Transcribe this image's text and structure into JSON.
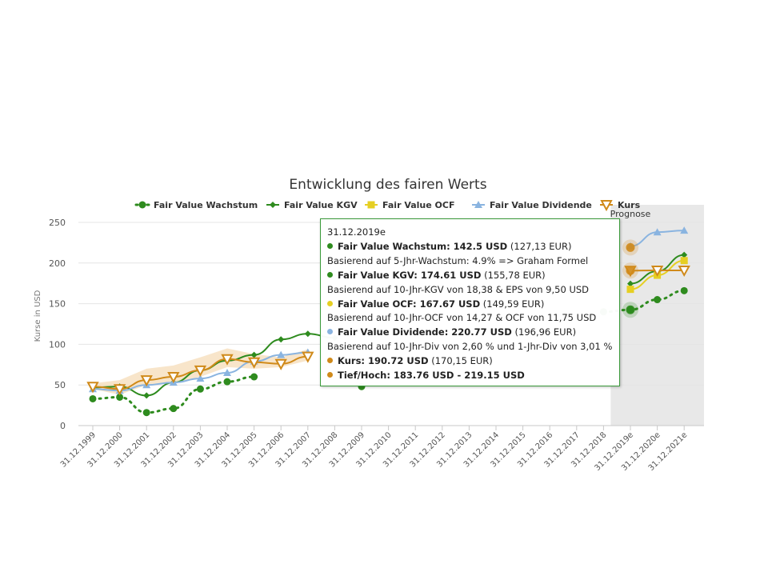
{
  "chart_data": {
    "type": "line",
    "title": "Entwicklung des fairen Werts",
    "ylabel": "Kurse in USD",
    "ylim": [
      0,
      250
    ],
    "yticks": [
      0,
      50,
      100,
      150,
      200,
      250
    ],
    "categories": [
      "31.12.1999",
      "31.12.2000",
      "31.12.2001",
      "31.12.2002",
      "31.12.2003",
      "31.12.2004",
      "31.12.2005",
      "31.12.2006",
      "31.12.2007",
      "31.12.2008",
      "31.12.2009",
      "31.12.2010",
      "31.12.2011",
      "31.12.2012",
      "31.12.2013",
      "31.12.2014",
      "31.12.2015",
      "31.12.2016",
      "31.12.2017",
      "31.12.2018",
      "31.12.2019e",
      "31.12.2020e",
      "31.12.2021e"
    ],
    "forecast_label": "Prognose",
    "forecast_start_index": 19,
    "legend_position": "top",
    "grid": true,
    "series": [
      {
        "name": "Fair Value Wachstum",
        "color": "#2e8b1e",
        "style": "dotted",
        "marker": "circle",
        "values": [
          33,
          35,
          16,
          21,
          45,
          54,
          60,
          null,
          null,
          null,
          48,
          null,
          null,
          null,
          null,
          null,
          null,
          null,
          null,
          140,
          142.5,
          155,
          166
        ]
      },
      {
        "name": "Fair Value KGV",
        "color": "#2e8b1e",
        "style": "solid",
        "marker": "diamond",
        "values": [
          47,
          48,
          37,
          53,
          68,
          80,
          87,
          106,
          113,
          108,
          null,
          null,
          null,
          null,
          null,
          null,
          null,
          null,
          null,
          null,
          174.61,
          190,
          210
        ]
      },
      {
        "name": "Fair Value OCF",
        "color": "#e6cf22",
        "style": "solid",
        "marker": "square",
        "values": [
          null,
          null,
          null,
          null,
          null,
          null,
          null,
          null,
          null,
          null,
          null,
          null,
          null,
          null,
          null,
          null,
          null,
          null,
          null,
          null,
          167.67,
          185,
          203
        ]
      },
      {
        "name": "Fair Value Dividende",
        "color": "#8ab4e0",
        "style": "solid",
        "marker": "triangle",
        "values": [
          45,
          43,
          50,
          53,
          58,
          65,
          79,
          87,
          90,
          null,
          null,
          null,
          null,
          null,
          null,
          null,
          null,
          null,
          null,
          null,
          220.77,
          238,
          240
        ]
      },
      {
        "name": "Kurs",
        "color": "#d08a1a",
        "style": "solid",
        "marker": "triangle-down",
        "values": [
          48,
          45,
          56,
          60,
          68,
          82,
          78,
          76,
          85,
          null,
          null,
          null,
          null,
          null,
          null,
          null,
          null,
          null,
          null,
          null,
          190.72,
          191,
          191
        ]
      }
    ],
    "range": {
      "name": "Tief/Hoch",
      "low": [
        45,
        38,
        50,
        52,
        60,
        72,
        70,
        72,
        80,
        null,
        null,
        null,
        null,
        null,
        null,
        null,
        null,
        null,
        null,
        null,
        183.76,
        null,
        null
      ],
      "high": [
        52,
        56,
        70,
        74,
        84,
        95,
        88,
        84,
        94,
        null,
        null,
        null,
        null,
        null,
        null,
        null,
        null,
        null,
        null,
        null,
        219.15,
        null,
        null
      ]
    },
    "tooltip": {
      "date": "31.12.2019e",
      "rows": [
        {
          "kind": "point",
          "color": "#2e8b1e",
          "label": "Fair Value Wachstum:",
          "value": "142.5 USD",
          "extra": "(127,13 EUR)"
        },
        {
          "kind": "note",
          "text": "Basierend auf 5-Jhr-Wachstum: 4.9% => Graham Formel"
        },
        {
          "kind": "point",
          "color": "#2e8b1e",
          "label": "Fair Value KGV:",
          "value": "174.61 USD",
          "extra": "(155,78 EUR)"
        },
        {
          "kind": "note",
          "text": "Basierend auf 10-Jhr-KGV von 18,38 & EPS von 9,50 USD"
        },
        {
          "kind": "point",
          "color": "#e6cf22",
          "label": "Fair Value OCF:",
          "value": "167.67 USD",
          "extra": "(149,59 EUR)"
        },
        {
          "kind": "note",
          "text": "Basierend auf 10-Jhr-OCF von 14,27 & OCF von 11,75 USD"
        },
        {
          "kind": "point",
          "color": "#8ab4e0",
          "label": "Fair Value Dividende:",
          "value": "220.77 USD",
          "extra": "(196,96 EUR)"
        },
        {
          "kind": "note",
          "text": "Basierend auf 10-Jhr-Div von 2,60 % und 1-Jhr-Div von 3,01 %"
        },
        {
          "kind": "point",
          "color": "#d08a1a",
          "label": "Kurs:",
          "value": "190.72 USD",
          "extra": "(170,15 EUR)"
        },
        {
          "kind": "point",
          "color": "#d08a1a",
          "label": "Tief/Hoch:",
          "value": "183.76 USD - 219.15 USD",
          "extra": ""
        }
      ]
    }
  }
}
